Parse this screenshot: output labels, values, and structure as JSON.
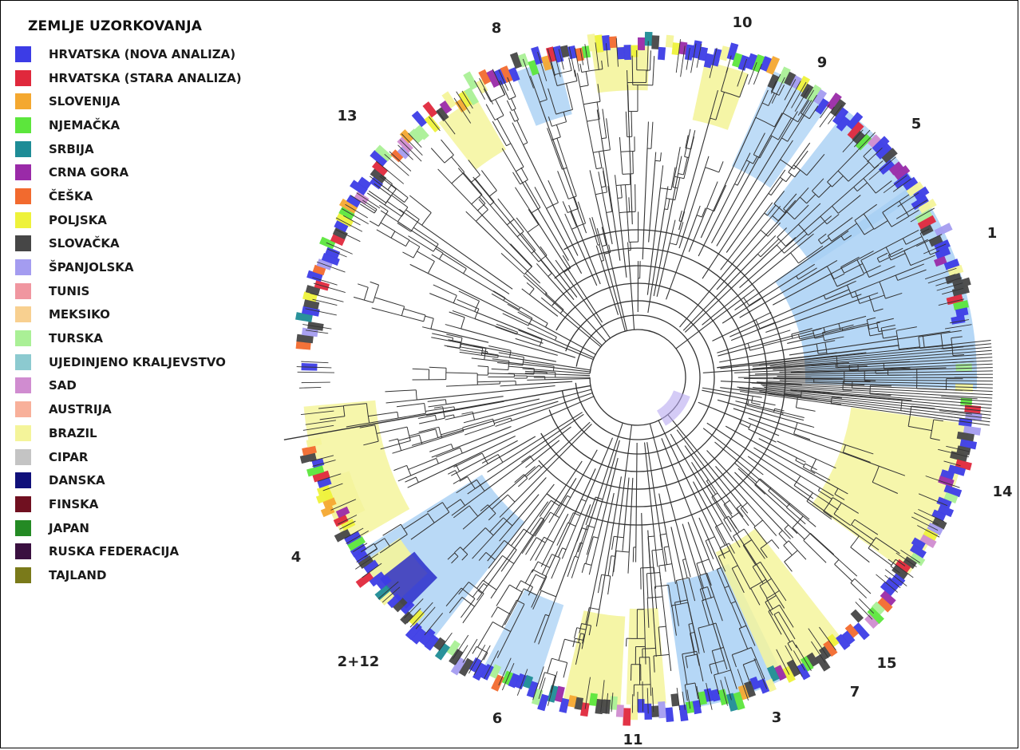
{
  "legend": {
    "title": "ZEMLJE UZORKOVANJA",
    "items": [
      {
        "label": "HRVATSKA (NOVA ANALIZA)",
        "color": "#3c3ce6"
      },
      {
        "label": "HRVATSKA (STARA ANALIZA)",
        "color": "#e0283c"
      },
      {
        "label": "SLOVENIJA",
        "color": "#f4a830"
      },
      {
        "label": "NJEMAČKA",
        "color": "#5ce63c"
      },
      {
        "label": "SRBIJA",
        "color": "#1e8c96"
      },
      {
        "label": "CRNA GORA",
        "color": "#9a2aa8"
      },
      {
        "label": "ČEŠKA",
        "color": "#f26a2e"
      },
      {
        "label": "POLJSKA",
        "color": "#eef23a"
      },
      {
        "label": "SLOVAČKA",
        "color": "#464646"
      },
      {
        "label": "ŠPANJOLSKA",
        "color": "#a49cf0"
      },
      {
        "label": "TUNIS",
        "color": "#f096a0"
      },
      {
        "label": "MEKSIKO",
        "color": "#f8d090"
      },
      {
        "label": "TURSKA",
        "color": "#aaf096"
      },
      {
        "label": "UJEDINJENO KRALJEVSTVO",
        "color": "#8ccad0"
      },
      {
        "label": "SAD",
        "color": "#d08cd0"
      },
      {
        "label": "AUSTRIJA",
        "color": "#f8b09a"
      },
      {
        "label": "BRAZIL",
        "color": "#f4f49a"
      },
      {
        "label": "CIPAR",
        "color": "#c4c4c4"
      },
      {
        "label": "DANSKA",
        "color": "#10107a"
      },
      {
        "label": "FINSKA",
        "color": "#701020"
      },
      {
        "label": "JAPAN",
        "color": "#248a24"
      },
      {
        "label": "RUSKA FEDERACIJA",
        "color": "#3a1040"
      },
      {
        "label": "TAJLAND",
        "color": "#7a7a1a"
      }
    ]
  },
  "clade_labels": [
    "8",
    "10",
    "9",
    "5",
    "1",
    "13",
    "14",
    "4",
    "2+12",
    "6",
    "11",
    "3",
    "7",
    "15"
  ],
  "palette": {
    "highlight_blue": "#a8d0f4",
    "highlight_yellow": "#f4f49c",
    "branch": "#333333"
  }
}
